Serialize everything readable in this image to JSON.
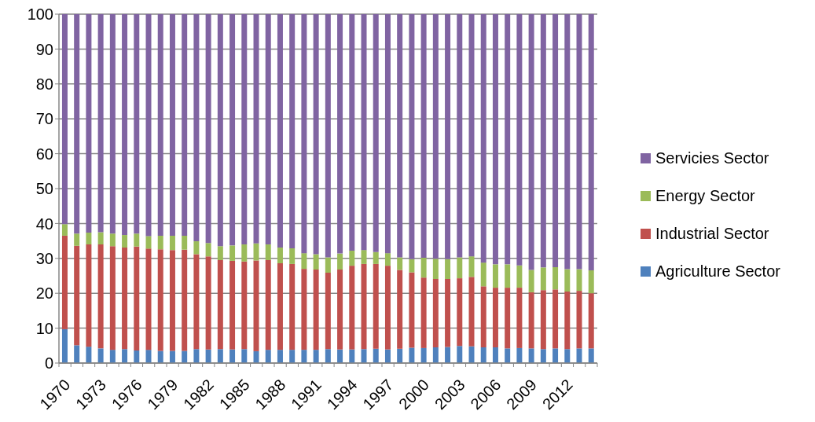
{
  "chart_data": {
    "type": "bar",
    "stacked": true,
    "categories": [
      "1970",
      null,
      null,
      "1973",
      null,
      null,
      "1976",
      null,
      null,
      "1979",
      null,
      null,
      "1982",
      null,
      null,
      "1985",
      null,
      null,
      "1988",
      null,
      null,
      "1991",
      null,
      null,
      "1994",
      null,
      null,
      "1997",
      null,
      null,
      "2000",
      null,
      null,
      "2003",
      null,
      null,
      "2006",
      null,
      null,
      "2009",
      null,
      null,
      "2012",
      null,
      null
    ],
    "series": [
      {
        "name": "Agriculture Sector",
        "color": "#4f81bd",
        "values": [
          9.7,
          5.1,
          4.7,
          4.2,
          3.8,
          4.0,
          3.6,
          3.8,
          3.5,
          3.5,
          3.5,
          4.0,
          3.9,
          4.0,
          3.9,
          4.0,
          3.4,
          3.8,
          3.8,
          3.8,
          3.8,
          3.8,
          4.0,
          3.9,
          3.9,
          4.0,
          4.1,
          3.9,
          4.1,
          4.4,
          4.3,
          4.5,
          4.6,
          4.9,
          4.8,
          4.5,
          4.5,
          4.2,
          4.3,
          4.2,
          4.0,
          4.2,
          4.0,
          4.2,
          4.2
        ]
      },
      {
        "name": "Industrial Sector",
        "color": "#c0504d",
        "values": [
          26.8,
          28.5,
          29.3,
          29.8,
          29.7,
          29.1,
          29.8,
          29.0,
          29.1,
          28.9,
          29.0,
          27.2,
          26.7,
          25.5,
          25.4,
          25.1,
          26.0,
          25.7,
          24.8,
          24.6,
          23.2,
          23.0,
          21.9,
          22.9,
          24.0,
          24.4,
          24.3,
          24.0,
          22.6,
          21.6,
          20.2,
          19.6,
          19.5,
          19.4,
          19.9,
          17.5,
          17.1,
          17.4,
          17.3,
          16.1,
          16.9,
          16.9,
          16.5,
          16.5,
          15.8
        ]
      },
      {
        "name": "Energy Sector",
        "color": "#9bbb59",
        "values": [
          3.3,
          3.5,
          3.4,
          3.5,
          3.6,
          3.6,
          3.7,
          3.6,
          3.9,
          4.1,
          4.0,
          3.7,
          3.8,
          4.0,
          4.4,
          4.9,
          4.9,
          4.5,
          4.5,
          4.5,
          4.5,
          4.4,
          4.4,
          4.6,
          4.3,
          4.0,
          3.4,
          3.6,
          3.6,
          3.8,
          5.7,
          5.8,
          5.7,
          6.0,
          5.9,
          6.8,
          6.7,
          6.7,
          6.4,
          6.4,
          6.5,
          6.4,
          6.4,
          6.2,
          6.6
        ]
      },
      {
        "name": "Servicies Sector",
        "color": "#8064a2",
        "values": [
          60.2,
          62.9,
          62.6,
          62.5,
          62.9,
          63.3,
          62.9,
          63.6,
          63.5,
          63.5,
          63.5,
          65.1,
          65.6,
          66.5,
          66.3,
          66.0,
          65.7,
          66.0,
          66.9,
          67.1,
          68.5,
          68.8,
          69.7,
          68.6,
          67.8,
          67.6,
          68.2,
          68.5,
          69.7,
          70.2,
          69.8,
          70.1,
          70.2,
          69.7,
          69.4,
          71.2,
          71.7,
          71.7,
          72.0,
          73.3,
          72.6,
          72.5,
          73.1,
          73.1,
          73.4
        ]
      }
    ],
    "ylim": [
      0,
      100
    ],
    "yticks": [
      0,
      10,
      20,
      30,
      40,
      50,
      60,
      70,
      80,
      90,
      100
    ],
    "grid": "y",
    "legend": "right"
  }
}
